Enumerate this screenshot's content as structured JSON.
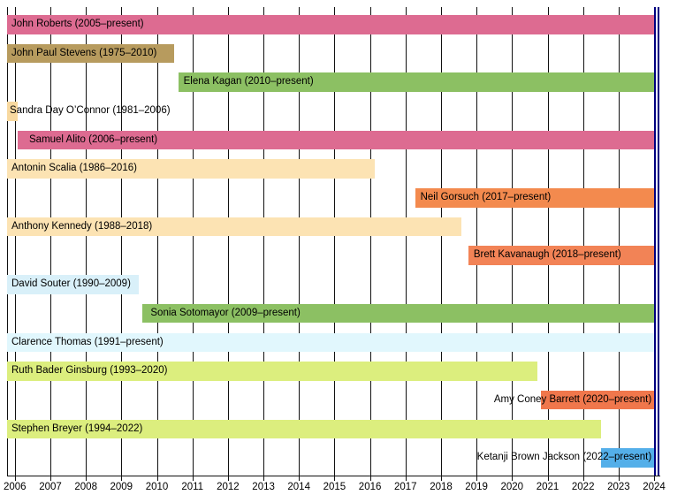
{
  "chart_data": {
    "type": "bar",
    "variant": "horizontal-timeline-gantt",
    "title": "",
    "xlabel": "",
    "ylabel": "",
    "grid": true,
    "x_axis": {
      "min": 2005.78,
      "max": 2024.03,
      "tick_years": [
        2006,
        2007,
        2008,
        2009,
        2010,
        2011,
        2012,
        2013,
        2014,
        2015,
        2016,
        2017,
        2018,
        2019,
        2020,
        2021,
        2022,
        2023,
        2024
      ]
    },
    "present_value": 2024.03,
    "colors": {
      "grid": "#111111",
      "axis": "#111111",
      "present_line": "#000080",
      "text": "#000000"
    },
    "rows": [
      {
        "name": "John Roberts",
        "label": "John Roberts (2005–present)",
        "start": 2005.75,
        "end": "present",
        "color": "#dd6b91",
        "label_align": "left",
        "label_pad": 5
      },
      {
        "name": "John Paul Stevens",
        "label": "John Paul Stevens (1975–2010)",
        "start": 1975.97,
        "end": 2010.49,
        "color": "#b79b5e",
        "label_align": "left",
        "label_pad": 5
      },
      {
        "name": "Elena Kagan",
        "label": "Elena Kagan (2010–present)",
        "start": 2010.6,
        "end": "present",
        "color": "#8cc063",
        "label_align": "left",
        "label_pad": 6
      },
      {
        "name": "Sandra Day O'Connor",
        "label": "Sandra Day O’Connor (1981–2006)",
        "start": 1981.73,
        "end": 2006.08,
        "color": "#f8d9a0",
        "label_align": "left",
        "label_pad": 3
      },
      {
        "name": "Samuel Alito",
        "label": "Samuel Alito (2006–present)",
        "start": 2006.08,
        "end": "present",
        "color": "#dd6b91",
        "label_align": "left",
        "label_pad": 13
      },
      {
        "name": "Antonin Scalia",
        "label": "Antonin Scalia (1986–2016)",
        "start": 1986.74,
        "end": 2016.12,
        "color": "#fce3b3",
        "label_align": "left",
        "label_pad": 5
      },
      {
        "name": "Neil Gorsuch",
        "label": "Neil Gorsuch (2017–present)",
        "start": 2017.27,
        "end": "present",
        "color": "#f38a4e",
        "label_align": "left",
        "label_pad": 6
      },
      {
        "name": "Anthony Kennedy",
        "label": "Anthony Kennedy (1988–2018)",
        "start": 1988.13,
        "end": 2018.58,
        "color": "#fce3b3",
        "label_align": "left",
        "label_pad": 5
      },
      {
        "name": "Brett Kavanaugh",
        "label": "Brett Kavanaugh (2018–present)",
        "start": 2018.77,
        "end": "present",
        "color": "#f28356",
        "label_align": "left",
        "label_pad": 6
      },
      {
        "name": "David Souter",
        "label": "David Souter (1990–2009)",
        "start": 1990.77,
        "end": 2009.49,
        "color": "#d9f0f9",
        "label_align": "left",
        "label_pad": 5
      },
      {
        "name": "Sonia Sotomayor",
        "label": "Sonia Sotomayor (2009–present)",
        "start": 2009.6,
        "end": "present",
        "color": "#8cc063",
        "label_align": "left",
        "label_pad": 9
      },
      {
        "name": "Clarence Thomas",
        "label": "Clarence Thomas (1991–present)",
        "start": 1991.8,
        "end": "present",
        "color": "#e1f7fd",
        "label_align": "left",
        "label_pad": 5
      },
      {
        "name": "Ruth Bader Ginsburg",
        "label": "Ruth Bader Ginsburg (1993–2020)",
        "start": 1993.61,
        "end": 2020.72,
        "color": "#dcee7e",
        "label_align": "left",
        "label_pad": 5
      },
      {
        "name": "Amy Coney Barrett",
        "label": "Amy Coney Barrett (2020–present)",
        "start": 2020.82,
        "end": "present",
        "color": "#f0774c",
        "label_align": "right",
        "label_pad": 4
      },
      {
        "name": "Stephen Breyer",
        "label": "Stephen Breyer (1994–2022)",
        "start": 1994.6,
        "end": 2022.5,
        "color": "#dcee7e",
        "label_align": "left",
        "label_pad": 5
      },
      {
        "name": "Ketanji Brown Jackson",
        "label": "Ketanji Brown Jackson (2022–present)",
        "start": 2022.5,
        "end": "present",
        "color": "#54afe9",
        "label_align": "right",
        "label_pad": 4
      }
    ]
  }
}
